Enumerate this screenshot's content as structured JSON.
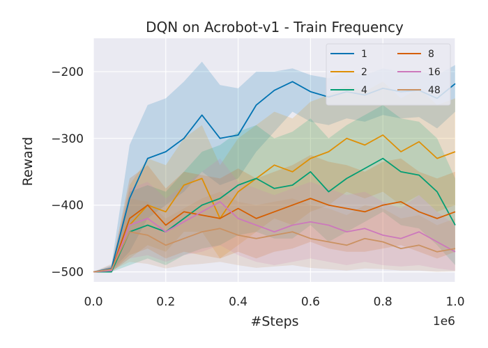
{
  "chart_data": {
    "type": "line",
    "title": "DQN on Acrobot-v1 - Train Frequency",
    "xlabel": "#Steps",
    "ylabel": "Reward",
    "x_offset_label": "1e6",
    "xlim": [
      0.0,
      1.0
    ],
    "ylim": [
      -515,
      -150
    ],
    "xticks": [
      0.0,
      0.2,
      0.4,
      0.6,
      0.8,
      1.0
    ],
    "xtick_labels": [
      "0.0",
      "0.2",
      "0.4",
      "0.6",
      "0.8",
      "1.0"
    ],
    "yticks": [
      -500,
      -400,
      -300,
      -200
    ],
    "ytick_labels": [
      "−500",
      "−400",
      "−300",
      "−200"
    ],
    "grid": true,
    "legend_position": "top-right",
    "legend_columns": 2,
    "x": [
      0.0,
      0.05,
      0.1,
      0.15,
      0.2,
      0.25,
      0.3,
      0.35,
      0.4,
      0.45,
      0.5,
      0.55,
      0.6,
      0.65,
      0.7,
      0.75,
      0.8,
      0.85,
      0.9,
      0.95,
      1.0
    ],
    "series": [
      {
        "name": "1",
        "color": "#0173b2",
        "values": [
          -500,
          -495,
          -390,
          -330,
          -320,
          -300,
          -265,
          -300,
          -295,
          -250,
          -228,
          -215,
          -230,
          -238,
          -230,
          -235,
          -225,
          -230,
          -228,
          -240,
          -218
        ],
        "lower": [
          -500,
          -498,
          -470,
          -420,
          -400,
          -380,
          -350,
          -370,
          -360,
          -320,
          -290,
          -260,
          -275,
          -280,
          -270,
          -275,
          -265,
          -270,
          -268,
          -285,
          -260
        ],
        "upper": [
          -500,
          -490,
          -310,
          -250,
          -240,
          -215,
          -185,
          -220,
          -225,
          -200,
          -200,
          -195,
          -205,
          -210,
          -200,
          -205,
          -195,
          -200,
          -200,
          -205,
          -190
        ]
      },
      {
        "name": "2",
        "color": "#de8f05",
        "values": [
          -500,
          -498,
          -430,
          -400,
          -410,
          -370,
          -360,
          -420,
          -380,
          -360,
          -340,
          -350,
          -330,
          -320,
          -300,
          -310,
          -295,
          -320,
          -305,
          -330,
          -320
        ],
        "lower": [
          -500,
          -500,
          -480,
          -460,
          -470,
          -440,
          -440,
          -480,
          -460,
          -440,
          -420,
          -430,
          -410,
          -400,
          -380,
          -390,
          -380,
          -400,
          -385,
          -410,
          -400
        ],
        "upper": [
          -500,
          -493,
          -370,
          -330,
          -340,
          -300,
          -280,
          -340,
          -300,
          -280,
          -260,
          -270,
          -245,
          -235,
          -220,
          -230,
          -215,
          -240,
          -225,
          -250,
          -240
        ]
      },
      {
        "name": "4",
        "color": "#029e73",
        "values": [
          -500,
          -500,
          -440,
          -430,
          -440,
          -420,
          -400,
          -390,
          -370,
          -360,
          -375,
          -370,
          -350,
          -380,
          -360,
          -345,
          -330,
          -350,
          -355,
          -380,
          -430
        ],
        "lower": [
          -500,
          -500,
          -490,
          -480,
          -490,
          -475,
          -465,
          -460,
          -445,
          -440,
          -450,
          -450,
          -430,
          -455,
          -440,
          -425,
          -410,
          -430,
          -435,
          -460,
          -490
        ],
        "upper": [
          -500,
          -495,
          -380,
          -370,
          -380,
          -350,
          -320,
          -310,
          -290,
          -280,
          -300,
          -290,
          -270,
          -300,
          -280,
          -265,
          -250,
          -270,
          -275,
          -300,
          -360
        ]
      },
      {
        "name": "8",
        "color": "#d55e00",
        "values": [
          -500,
          -498,
          -420,
          -400,
          -430,
          -410,
          -415,
          -420,
          -405,
          -420,
          -410,
          -400,
          -390,
          -400,
          -405,
          -410,
          -400,
          -395,
          -410,
          -420,
          -410
        ],
        "lower": [
          -500,
          -500,
          -475,
          -465,
          -480,
          -470,
          -475,
          -480,
          -470,
          -480,
          -470,
          -465,
          -455,
          -465,
          -470,
          -470,
          -465,
          -460,
          -470,
          -480,
          -470
        ],
        "upper": [
          -500,
          -492,
          -360,
          -340,
          -375,
          -350,
          -355,
          -360,
          -345,
          -360,
          -350,
          -340,
          -325,
          -335,
          -340,
          -350,
          -335,
          -330,
          -350,
          -360,
          -350
        ]
      },
      {
        "name": "16",
        "color": "#cc78bc",
        "values": [
          -500,
          -498,
          -430,
          -420,
          -440,
          -425,
          -410,
          -395,
          -420,
          -430,
          -440,
          -430,
          -425,
          -430,
          -440,
          -435,
          -445,
          -450,
          -440,
          -455,
          -470
        ],
        "lower": [
          -500,
          -500,
          -480,
          -475,
          -485,
          -475,
          -470,
          -460,
          -475,
          -485,
          -490,
          -485,
          -480,
          -485,
          -490,
          -485,
          -490,
          -492,
          -490,
          -495,
          -498
        ],
        "upper": [
          -500,
          -492,
          -375,
          -365,
          -390,
          -370,
          -350,
          -330,
          -365,
          -375,
          -385,
          -375,
          -365,
          -375,
          -385,
          -380,
          -395,
          -405,
          -385,
          -410,
          -430
        ]
      },
      {
        "name": "48",
        "color": "#ca9161",
        "values": [
          -500,
          -496,
          -440,
          -445,
          -460,
          -450,
          -440,
          -435,
          -445,
          -450,
          -445,
          -440,
          -450,
          -455,
          -460,
          -450,
          -455,
          -465,
          -460,
          -470,
          -465
        ],
        "lower": [
          -500,
          -498,
          -485,
          -488,
          -495,
          -490,
          -488,
          -485,
          -490,
          -494,
          -492,
          -490,
          -494,
          -496,
          -498,
          -495,
          -496,
          -498,
          -498,
          -500,
          -499
        ],
        "upper": [
          -500,
          -488,
          -390,
          -395,
          -420,
          -405,
          -390,
          -380,
          -395,
          -400,
          -395,
          -390,
          -400,
          -405,
          -415,
          -400,
          -405,
          -420,
          -415,
          -430,
          -420
        ]
      }
    ]
  }
}
